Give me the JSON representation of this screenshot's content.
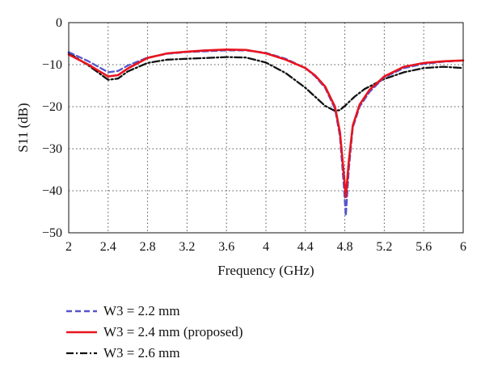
{
  "chart_data": {
    "type": "line",
    "title": "",
    "xlabel": "Frequency (GHz)",
    "ylabel": "S11 (dB)",
    "xlim": [
      2,
      6
    ],
    "ylim": [
      -50,
      0
    ],
    "grid": true,
    "legend_position": "bottom-left",
    "x_ticks": [
      "2",
      "2.4",
      "2.8",
      "3.2",
      "3.6",
      "4",
      "4.4",
      "4.8",
      "5.2",
      "5.6",
      "6"
    ],
    "y_ticks": [
      "0",
      "−10",
      "−20",
      "−30",
      "−40",
      "−50"
    ],
    "series": [
      {
        "name": "W3 = 2.2 mm",
        "color": "#5555cc",
        "style": "dashed",
        "x": [
          2.0,
          2.2,
          2.4,
          2.5,
          2.6,
          2.8,
          3.0,
          3.2,
          3.4,
          3.6,
          3.8,
          4.0,
          4.2,
          4.4,
          4.5,
          4.6,
          4.7,
          4.75,
          4.79,
          4.81,
          4.84,
          4.88,
          4.95,
          5.05,
          5.2,
          5.4,
          5.6,
          5.8,
          6.0
        ],
        "y": [
          -7.0,
          -9.2,
          -11.8,
          -11.5,
          -10.2,
          -8.3,
          -7.4,
          -7.0,
          -6.8,
          -6.6,
          -6.6,
          -7.2,
          -8.6,
          -10.8,
          -12.8,
          -15.5,
          -20.5,
          -27.0,
          -39.0,
          -46.0,
          -35.0,
          -25.0,
          -20.0,
          -16.5,
          -13.0,
          -10.8,
          -9.8,
          -9.3,
          -9.0
        ]
      },
      {
        "name": "W3 = 2.4 mm (proposed)",
        "color": "#e8141e",
        "style": "solid",
        "x": [
          2.0,
          2.2,
          2.4,
          2.5,
          2.6,
          2.8,
          3.0,
          3.2,
          3.4,
          3.6,
          3.8,
          4.0,
          4.2,
          4.4,
          4.5,
          4.6,
          4.7,
          4.75,
          4.79,
          4.81,
          4.84,
          4.88,
          4.95,
          5.05,
          5.2,
          5.4,
          5.6,
          5.8,
          6.0
        ],
        "y": [
          -7.6,
          -10.0,
          -12.8,
          -12.5,
          -10.9,
          -8.4,
          -7.3,
          -6.9,
          -6.6,
          -6.4,
          -6.5,
          -7.3,
          -8.8,
          -10.8,
          -12.6,
          -15.2,
          -20.0,
          -26.0,
          -36.0,
          -41.5,
          -33.0,
          -24.5,
          -19.5,
          -16.0,
          -12.8,
          -10.5,
          -9.6,
          -9.2,
          -9.0
        ]
      },
      {
        "name": "W3 = 2.6 mm",
        "color": "#111111",
        "style": "dash-dot",
        "x": [
          2.0,
          2.2,
          2.4,
          2.5,
          2.6,
          2.8,
          3.0,
          3.2,
          3.4,
          3.6,
          3.8,
          4.0,
          4.2,
          4.4,
          4.6,
          4.7,
          4.75,
          4.8,
          4.9,
          5.0,
          5.2,
          5.4,
          5.6,
          5.8,
          6.0
        ],
        "y": [
          -7.2,
          -10.2,
          -13.6,
          -13.3,
          -11.6,
          -9.6,
          -8.8,
          -8.6,
          -8.4,
          -8.2,
          -8.3,
          -9.5,
          -12.0,
          -15.5,
          -19.8,
          -21.0,
          -20.8,
          -19.8,
          -17.6,
          -15.8,
          -13.4,
          -11.8,
          -10.8,
          -10.5,
          -10.8
        ]
      }
    ]
  }
}
